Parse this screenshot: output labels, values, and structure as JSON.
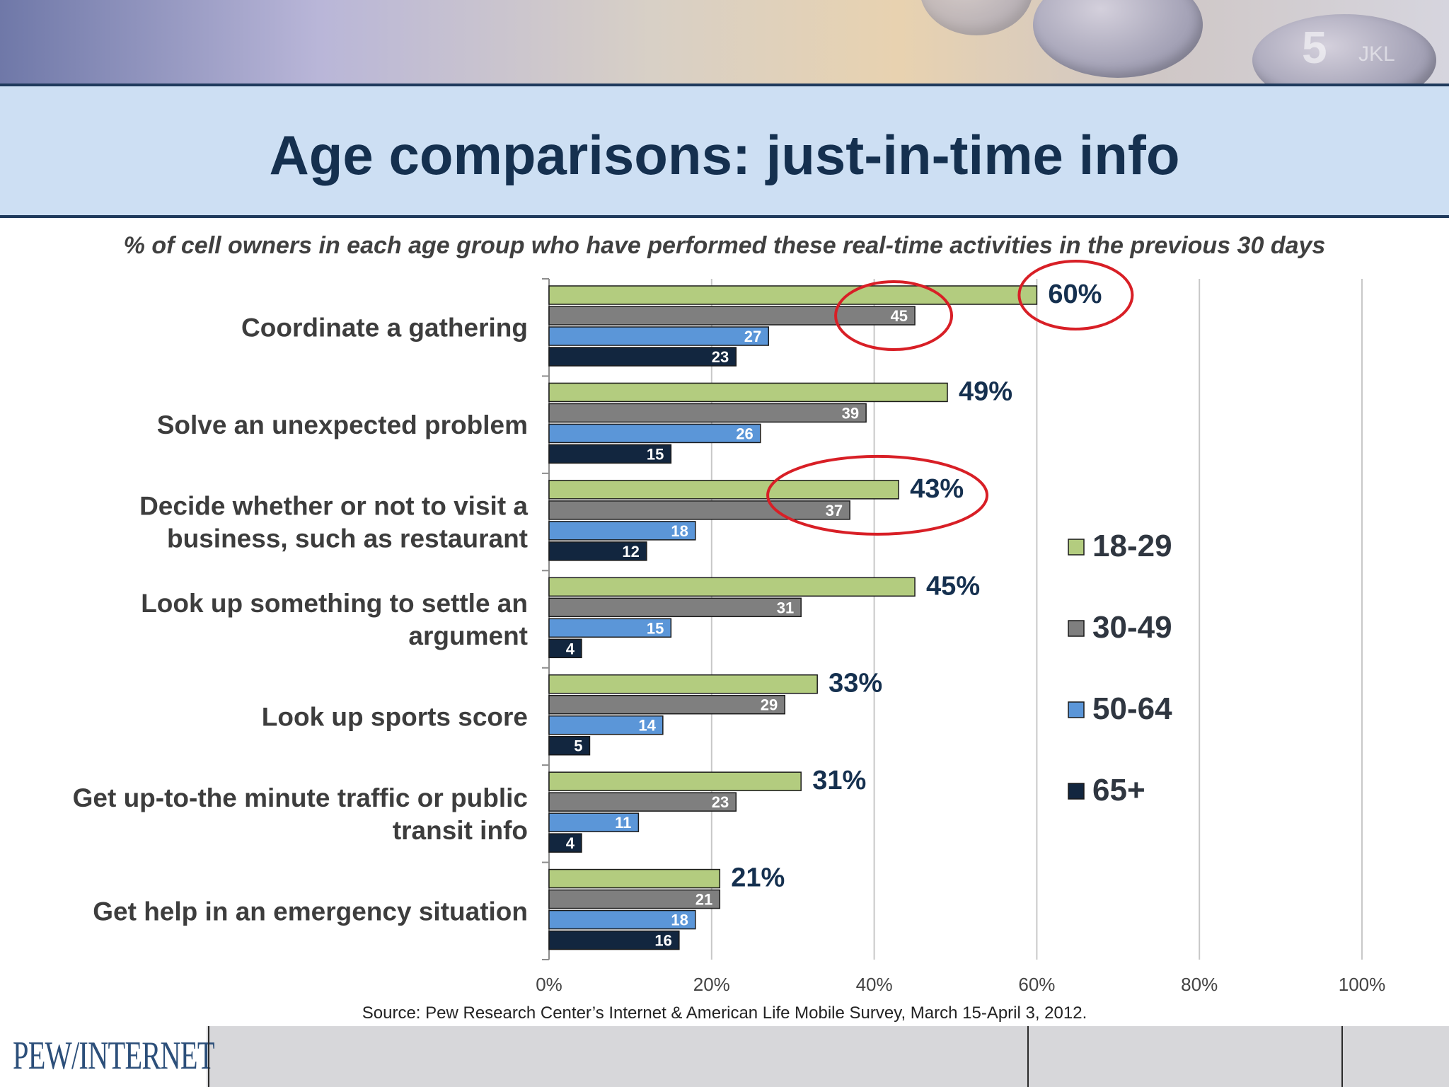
{
  "title": "Age comparisons: just-in-time info",
  "subtitle": "% of cell owners in each age group who have performed these real-time activities in the previous 30 days",
  "source": "Source: Pew Research Center’s Internet & American Life Mobile Survey, March 15-April 3, 2012.",
  "logo": "PEW/INTERNET",
  "banner_key": {
    "glyph": "5",
    "sub": "JKL"
  },
  "chart_data": {
    "type": "bar",
    "orientation": "horizontal",
    "categories": [
      [
        "Coordinate a gathering"
      ],
      [
        "Solve an unexpected problem"
      ],
      [
        "Decide whether or not to visit a",
        "business, such as restaurant"
      ],
      [
        "Look up something to settle an",
        "argument"
      ],
      [
        "Look up sports score"
      ],
      [
        "Get up-to-the minute traffic or public",
        "transit info"
      ],
      [
        "Get help in an emergency situation"
      ]
    ],
    "series": [
      {
        "name": "18-29",
        "color": "#b3cc7f",
        "values": [
          60,
          49,
          43,
          45,
          33,
          31,
          21
        ]
      },
      {
        "name": "30-49",
        "color": "#7f7f7f",
        "values": [
          45,
          39,
          37,
          31,
          29,
          23,
          21
        ]
      },
      {
        "name": "50-64",
        "color": "#5b96d8",
        "values": [
          27,
          26,
          18,
          15,
          14,
          11,
          18
        ]
      },
      {
        "name": "65+",
        "color": "#12263f",
        "values": [
          23,
          15,
          12,
          4,
          5,
          4,
          16
        ]
      }
    ],
    "xlim": [
      0,
      100
    ],
    "xticks": [
      "0%",
      "20%",
      "40%",
      "60%",
      "80%",
      "100%"
    ],
    "grid": true,
    "legend_position": "right",
    "annotations": [
      {
        "type": "ellipse",
        "category_index": 0,
        "series": "18-29"
      },
      {
        "type": "ellipse",
        "category_index": 0,
        "series": "30-49"
      },
      {
        "type": "ellipse",
        "category_index": 2,
        "series": "18-29"
      }
    ]
  }
}
